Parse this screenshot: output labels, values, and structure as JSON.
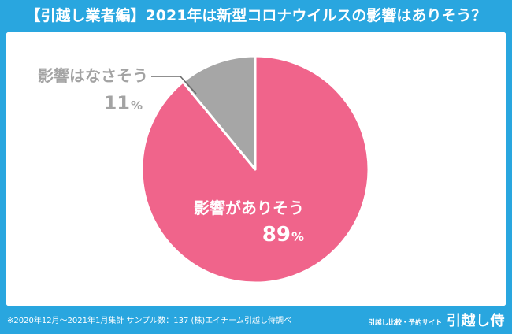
{
  "theme": {
    "accent": "#29a6df"
  },
  "chart_data": {
    "type": "pie",
    "title": "【引越し業者編】2021年は新型コロナウイルスの影響はありそう？",
    "categories": [
      "影響がありそう",
      "影響はなさそう"
    ],
    "values": [
      89,
      11
    ],
    "unit": "%",
    "colors": [
      "#f0648b",
      "#a6a6a6"
    ]
  },
  "footer": {
    "note": "※2020年12月～2021年1月集計 サンプル数：137 (株)エイチーム引越し侍調べ",
    "brand_tagline": "引越し比較・予約サイト",
    "brand_name": "引越し侍"
  }
}
